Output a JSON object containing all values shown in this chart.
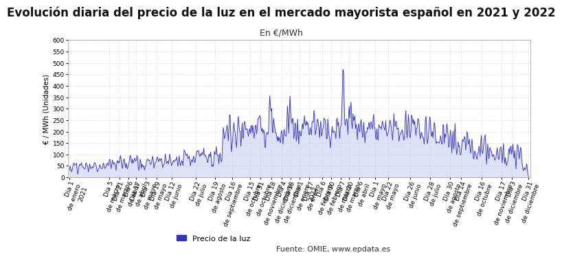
{
  "title": "Evolución diaria del precio de la luz en el mercado mayorista español en 2021 y 2022",
  "subtitle": "En €/MWh",
  "ylabel": "€ / MWh (Unidades)",
  "legend_label": "Precio de la luz",
  "source_text": "Fuente: OMIE, www.epdata.es",
  "line_color": "#3333bb",
  "fill_color": "#c8d0f0",
  "ylim": [
    0,
    600
  ],
  "yticks": [
    0,
    50,
    100,
    150,
    200,
    250,
    300,
    350,
    400,
    450,
    500,
    550,
    600
  ],
  "background_color": "#ffffff",
  "grid_color": "#c8c8d8",
  "title_fontsize": 12,
  "subtitle_fontsize": 9,
  "ylabel_fontsize": 7.5,
  "tick_fontsize": 6.5,
  "xtick_labels": [
    "Día 1\nde enero\n2021",
    "Día 5\nde marzo",
    "Día 21\nde marzo",
    "Día 6\nde abril",
    "Día 17\nde abril",
    "Día 3\nde mayo",
    "Día 19\nde mayo",
    "Día 12\nde junio",
    "Día 22\nde julio",
    "Día 19\nde agosto",
    "Día 16\nde septiembre",
    "Día 15\nde octubre",
    "Día 31\nde octubre",
    "Día 18\nde noviembre",
    "Día 4\nde diciembre",
    "Día 18\nde diciembre",
    "Día 1\nde enero\n2022",
    "Día 17\nde enero",
    "Día 6\nde febrero",
    "Día 20\nde febrero",
    "Día 7\nde marzo",
    "Día 20\nde marzo",
    "Día 6\nde abril",
    "Día 1\nde mayo",
    "Día 22\nde mayo",
    "Día 26\nde junio",
    "Día 28\nde julio",
    "Día 30\nde agosto",
    "Día 14\nde septiembre",
    "Día 16\nde octubre",
    "Día 17\nde noviembre",
    "Día 3\nde diciembre",
    "Día 31\nde diciembre"
  ],
  "xtick_positions": [
    0,
    63,
    79,
    94,
    106,
    121,
    138,
    162,
    201,
    231,
    258,
    287,
    303,
    321,
    337,
    351,
    365,
    381,
    401,
    415,
    431,
    444,
    460,
    485,
    506,
    541,
    573,
    604,
    622,
    654,
    686,
    702,
    729
  ]
}
